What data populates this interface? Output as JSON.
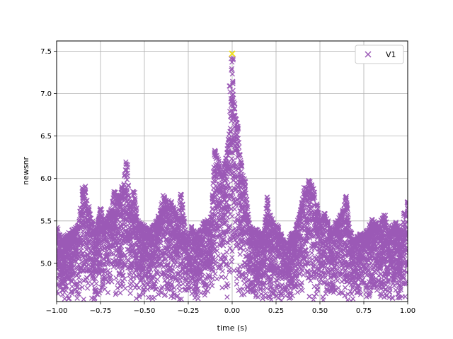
{
  "chart_data": {
    "type": "scatter",
    "title": "",
    "xlabel": "time (s)",
    "ylabel": "newsnr",
    "xlim": [
      -1.0,
      1.0
    ],
    "ylim": [
      4.55,
      7.62
    ],
    "xticks": [
      -1.0,
      -0.75,
      -0.5,
      -0.25,
      0.0,
      0.25,
      0.5,
      0.75,
      1.0
    ],
    "xtick_labels": [
      "−1.00",
      "−0.75",
      "−0.50",
      "−0.25",
      "0.00",
      "0.25",
      "0.50",
      "0.75",
      "1.00"
    ],
    "yticks": [
      5.0,
      5.5,
      6.0,
      6.5,
      7.0,
      7.5
    ],
    "ytick_labels": [
      "5.0",
      "5.5",
      "6.0",
      "6.5",
      "7.0",
      "7.5"
    ],
    "grid": true,
    "legend": {
      "position": "top-right",
      "entries": [
        "V1"
      ]
    },
    "series": [
      {
        "name": "V1",
        "marker": "x",
        "color": "#9b59b6",
        "envelope_note": "dense cloud of triggers; upper envelope of newsnr vs time",
        "envelope_x": [
          -1.0,
          -0.97,
          -0.92,
          -0.88,
          -0.85,
          -0.84,
          -0.82,
          -0.8,
          -0.78,
          -0.75,
          -0.72,
          -0.7,
          -0.67,
          -0.64,
          -0.6,
          -0.58,
          -0.56,
          -0.53,
          -0.5,
          -0.47,
          -0.43,
          -0.39,
          -0.35,
          -0.31,
          -0.29,
          -0.26,
          -0.23,
          -0.2,
          -0.16,
          -0.12,
          -0.1,
          -0.08,
          -0.06,
          -0.04,
          -0.03,
          -0.02,
          -0.01,
          0.0,
          0.01,
          0.02,
          0.03,
          0.05,
          0.07,
          0.1,
          0.14,
          0.18,
          0.2,
          0.22,
          0.26,
          0.3,
          0.34,
          0.38,
          0.41,
          0.44,
          0.47,
          0.5,
          0.53,
          0.56,
          0.6,
          0.63,
          0.65,
          0.67,
          0.7,
          0.73,
          0.77,
          0.8,
          0.83,
          0.87,
          0.9,
          0.93,
          0.96,
          0.98,
          1.0
        ],
        "envelope_y": [
          5.45,
          5.3,
          5.38,
          5.45,
          5.9,
          5.92,
          5.7,
          5.5,
          5.4,
          5.65,
          5.5,
          5.6,
          5.85,
          5.8,
          6.2,
          5.65,
          5.85,
          5.5,
          5.45,
          5.4,
          5.5,
          5.8,
          5.75,
          5.55,
          5.85,
          5.3,
          5.45,
          5.35,
          5.5,
          5.55,
          6.35,
          6.25,
          6.1,
          6.2,
          6.35,
          6.5,
          7.1,
          7.45,
          6.9,
          6.75,
          6.65,
          6.2,
          6.0,
          5.45,
          5.4,
          5.35,
          5.8,
          5.55,
          5.45,
          5.25,
          5.35,
          5.55,
          5.9,
          6.0,
          5.85,
          5.55,
          5.6,
          5.45,
          5.5,
          5.65,
          5.8,
          5.4,
          5.3,
          5.35,
          5.4,
          5.55,
          5.45,
          5.6,
          5.4,
          5.5,
          5.4,
          5.6,
          5.75
        ],
        "floor": 4.55
      }
    ],
    "highlight_point": {
      "x": 0.0,
      "y": 7.47,
      "color": "#f0e020"
    }
  }
}
